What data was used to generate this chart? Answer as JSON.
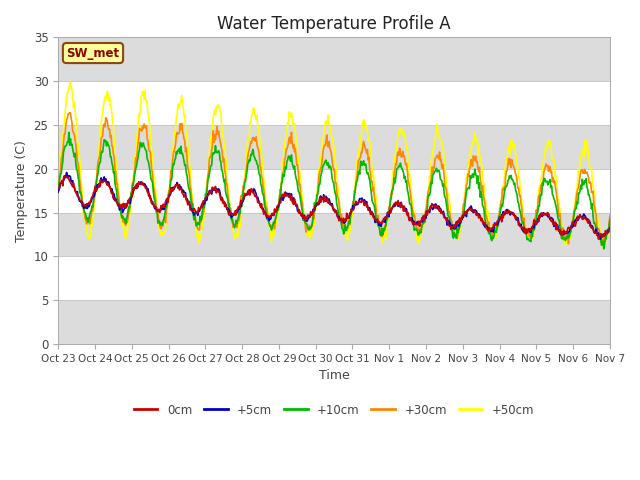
{
  "title": "Water Temperature Profile A",
  "xlabel": "Time",
  "ylabel": "Temperature (C)",
  "ylim": [
    0,
    35
  ],
  "annotation": "SW_met",
  "annotation_color": "#8B0000",
  "annotation_bg": "#FFFF99",
  "annotation_border": "#8B4513",
  "fig_bg": "#FFFFFF",
  "plot_bg": "#FFFFFF",
  "band_colors": [
    "#DCDCDC",
    "#FFFFFF"
  ],
  "grid_color": "#C8C8C8",
  "line_colors": {
    "0cm": "#CC0000",
    "+5cm": "#0000CC",
    "+10cm": "#00BB00",
    "+30cm": "#FF8800",
    "+50cm": "#FFFF00"
  },
  "xtick_labels": [
    "Oct 23",
    "Oct 24",
    "Oct 25",
    "Oct 26",
    "Oct 27",
    "Oct 28",
    "Oct 29",
    "Oct 30",
    "Oct 31",
    "Nov 1",
    "Nov 2",
    "Nov 3",
    "Nov 4",
    "Nov 5",
    "Nov 6",
    "Nov 7"
  ],
  "ytick_values": [
    0,
    5,
    10,
    15,
    20,
    25,
    30,
    35
  ],
  "legend_labels": [
    "0cm",
    "+5cm",
    "+10cm",
    "+30cm",
    "+50cm"
  ],
  "legend_colors": [
    "#CC0000",
    "#0000CC",
    "#00BB00",
    "#FF8800",
    "#FFFF00"
  ]
}
